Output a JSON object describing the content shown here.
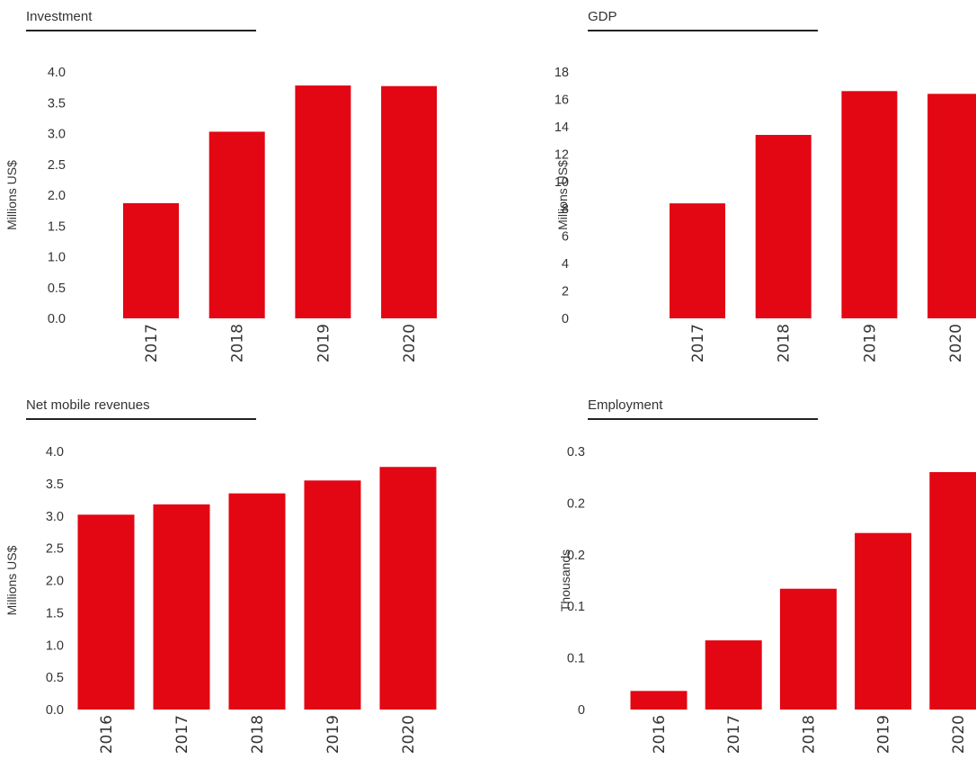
{
  "colors": {
    "bar": "#e30613",
    "text": "#333333",
    "rule": "#222222"
  },
  "chart_data": [
    {
      "id": "inv",
      "type": "bar",
      "title": "Investment",
      "ylabel": "Millions US$",
      "categories": [
        "2017",
        "2018",
        "2019",
        "2020"
      ],
      "values": [
        1.87,
        3.03,
        3.78,
        3.77
      ],
      "yticks": [
        "0.0",
        "0.5",
        "1.0",
        "1.5",
        "2.0",
        "2.5",
        "3.0",
        "3.5",
        "4.0"
      ],
      "ylim": [
        0,
        4.0
      ],
      "grid": false,
      "legend": "none"
    },
    {
      "id": "gdp",
      "type": "bar",
      "title": "GDP",
      "ylabel": "Millions US$",
      "categories": [
        "2017",
        "2018",
        "2019",
        "2020"
      ],
      "values": [
        8.4,
        13.4,
        16.6,
        16.4
      ],
      "yticks": [
        "0",
        "2",
        "4",
        "6",
        "8",
        "10",
        "12",
        "14",
        "16",
        "18"
      ],
      "ylim": [
        0,
        18
      ],
      "grid": false,
      "legend": "none"
    },
    {
      "id": "rev",
      "type": "bar",
      "title": "Net mobile revenues",
      "ylabel": "Millions US$",
      "categories": [
        "2016",
        "2017",
        "2018",
        "2019",
        "2020"
      ],
      "values": [
        3.02,
        3.18,
        3.35,
        3.55,
        3.76
      ],
      "yticks": [
        "0.0",
        "0.5",
        "1.0",
        "1.5",
        "2.0",
        "2.5",
        "3.0",
        "3.5",
        "4.0"
      ],
      "ylim": [
        0,
        4.0
      ],
      "grid": false,
      "legend": "none"
    },
    {
      "id": "emp",
      "type": "bar",
      "title": "Employment",
      "ylabel": "Thousands",
      "categories": [
        "2016",
        "2017",
        "2018",
        "2019",
        "2020"
      ],
      "values": [
        0.018,
        0.067,
        0.117,
        0.171,
        0.23
      ],
      "yticks": [
        "0",
        "0.1",
        "0.1",
        "0.2",
        "0.2",
        "0.3"
      ],
      "ylim": [
        0,
        0.25
      ],
      "grid": false,
      "legend": "none"
    }
  ]
}
